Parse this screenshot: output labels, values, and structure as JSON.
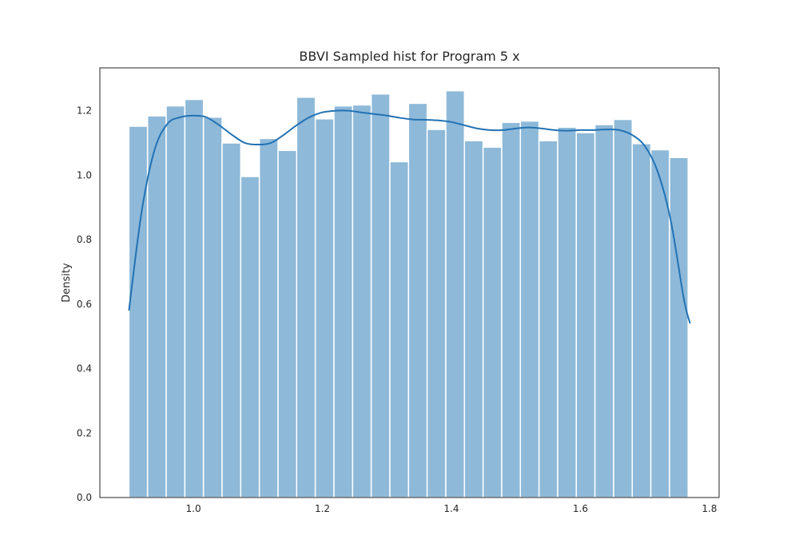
{
  "chart_data": {
    "type": "histogram",
    "title": "BBVI Sampled hist for Program 5 x",
    "xlabel": "",
    "ylabel": "Density",
    "xlim": [
      0.855,
      1.815
    ],
    "ylim": [
      0.0,
      1.333
    ],
    "x_ticks": [
      1.0,
      1.2,
      1.4,
      1.6,
      1.8
    ],
    "x_tick_labels": [
      "1.0",
      "1.2",
      "1.4",
      "1.6",
      "1.8"
    ],
    "y_ticks": [
      0.0,
      0.2,
      0.4,
      0.6,
      0.8,
      1.0,
      1.2
    ],
    "y_tick_labels": [
      "0.0",
      "0.2",
      "0.4",
      "0.6",
      "0.8",
      "1.0",
      "1.2"
    ],
    "grid": false,
    "bar_color": "#8eb9d9",
    "bar_edge_color": "#ffffff",
    "kde_color": "#2272b4",
    "bins": {
      "start": 0.9,
      "width": 0.0289,
      "densities": [
        1.152,
        1.184,
        1.215,
        1.235,
        1.18,
        1.1,
        0.996,
        1.114,
        1.077,
        1.242,
        1.175,
        1.215,
        1.218,
        1.252,
        1.042,
        1.223,
        1.142,
        1.262,
        1.107,
        1.087,
        1.164,
        1.168,
        1.107,
        1.149,
        1.132,
        1.157,
        1.173,
        1.098,
        1.079,
        1.055
      ]
    },
    "kde": {
      "x": [
        0.9,
        0.92,
        0.94,
        0.96,
        0.98,
        1.0,
        1.02,
        1.04,
        1.06,
        1.08,
        1.1,
        1.12,
        1.14,
        1.16,
        1.18,
        1.2,
        1.22,
        1.24,
        1.26,
        1.28,
        1.3,
        1.32,
        1.34,
        1.36,
        1.38,
        1.4,
        1.42,
        1.44,
        1.46,
        1.48,
        1.5,
        1.52,
        1.54,
        1.56,
        1.58,
        1.6,
        1.62,
        1.64,
        1.66,
        1.68,
        1.7,
        1.72,
        1.74,
        1.76,
        1.77
      ],
      "y": [
        0.58,
        0.89,
        1.08,
        1.16,
        1.18,
        1.185,
        1.18,
        1.155,
        1.125,
        1.1,
        1.095,
        1.1,
        1.125,
        1.155,
        1.18,
        1.195,
        1.2,
        1.2,
        1.195,
        1.19,
        1.185,
        1.178,
        1.173,
        1.172,
        1.17,
        1.165,
        1.155,
        1.145,
        1.14,
        1.14,
        1.145,
        1.148,
        1.145,
        1.14,
        1.138,
        1.14,
        1.14,
        1.142,
        1.14,
        1.125,
        1.09,
        1.01,
        0.86,
        0.62,
        0.54
      ]
    }
  }
}
